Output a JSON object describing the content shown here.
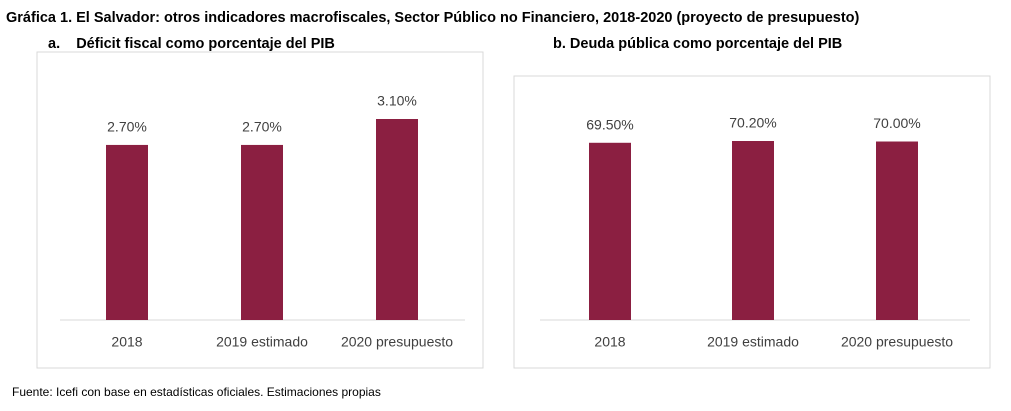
{
  "title": "Gráfica 1. El Salvador: otros indicadores macrofiscales, Sector Público no Financiero, 2018-2020 (proyecto de presupuesto)",
  "source": "Fuente: Icefi con base en estadísticas oficiales. Estimaciones propias",
  "chart_data": [
    {
      "type": "bar",
      "title": "a.    Déficit fiscal como porcentaje del PIB",
      "categories": [
        "2018",
        "2019 estimado",
        "2020 presupuesto"
      ],
      "values": [
        2.7,
        2.7,
        3.1
      ],
      "value_labels": [
        "2.70%",
        "2.70%",
        "3.10%"
      ],
      "color": "#8b1f41"
    },
    {
      "type": "bar",
      "title": "b. Deuda pública como porcentaje del PIB",
      "categories": [
        "2018",
        "2019 estimado",
        "2020 presupuesto"
      ],
      "values": [
        69.5,
        70.2,
        70.0
      ],
      "value_labels": [
        "69.50%",
        "70.20%",
        "70.00%"
      ],
      "color": "#8b1f41"
    }
  ]
}
